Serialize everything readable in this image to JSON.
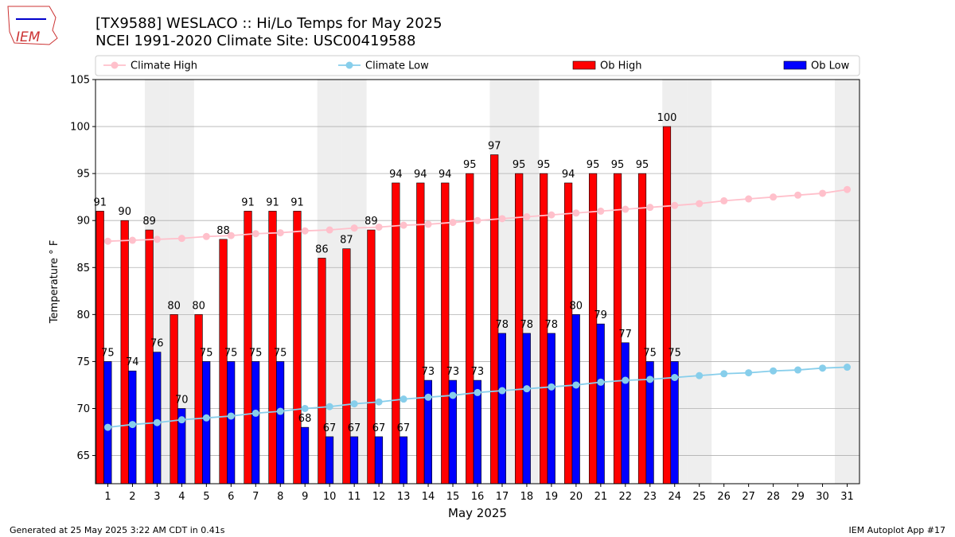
{
  "chart_data": {
    "type": "bar_line",
    "title": "[TX9588] WESLACO :: Hi/Lo Temps for May 2025",
    "subtitle": "NCEI 1991-2020 Climate Site: USC00419588",
    "x_label": "May 2025",
    "y_label": "Temperature ° F",
    "categories": [
      "1",
      "2",
      "3",
      "4",
      "5",
      "6",
      "7",
      "8",
      "9",
      "10",
      "11",
      "12",
      "13",
      "14",
      "15",
      "16",
      "17",
      "18",
      "19",
      "20",
      "21",
      "22",
      "23",
      "24",
      "25",
      "26",
      "27",
      "28",
      "29",
      "30",
      "31"
    ],
    "shaded_categories": [
      2,
      3,
      9,
      10,
      16,
      17,
      23,
      24,
      30
    ],
    "ylim": [
      62,
      105
    ],
    "yticks": [
      65,
      70,
      75,
      80,
      85,
      90,
      95,
      100,
      105
    ],
    "grid": true,
    "series": [
      {
        "name": "Climate High",
        "kind": "line",
        "color": "#ffc0cb",
        "values": [
          87.8,
          87.9,
          88.0,
          88.1,
          88.3,
          88.4,
          88.6,
          88.7,
          88.9,
          89.0,
          89.2,
          89.3,
          89.5,
          89.6,
          89.8,
          90.0,
          90.2,
          90.4,
          90.6,
          90.8,
          91.0,
          91.2,
          91.4,
          91.6,
          91.8,
          92.1,
          92.3,
          92.5,
          92.7,
          92.9,
          93.3
        ]
      },
      {
        "name": "Climate Low",
        "kind": "line",
        "color": "#87ceeb",
        "values": [
          68.0,
          68.3,
          68.5,
          68.8,
          69.0,
          69.2,
          69.5,
          69.7,
          70.0,
          70.2,
          70.5,
          70.7,
          71.0,
          71.2,
          71.4,
          71.7,
          71.9,
          72.1,
          72.3,
          72.5,
          72.8,
          73.0,
          73.1,
          73.3,
          73.5,
          73.7,
          73.8,
          74.0,
          74.1,
          74.3,
          74.4
        ]
      },
      {
        "name": "Ob High",
        "kind": "bar",
        "color": "#ff0000",
        "values": [
          91,
          90,
          89,
          80,
          80,
          88,
          91,
          91,
          91,
          86,
          87,
          89,
          94,
          94,
          94,
          95,
          97,
          95,
          95,
          94,
          95,
          95,
          95,
          100,
          null,
          null,
          null,
          null,
          null,
          null,
          null
        ]
      },
      {
        "name": "Ob Low",
        "kind": "bar",
        "color": "#0000ff",
        "values": [
          75,
          74,
          76,
          70,
          75,
          75,
          75,
          75,
          68,
          67,
          67,
          67,
          67,
          73,
          73,
          73,
          78,
          78,
          78,
          80,
          79,
          77,
          75,
          75,
          null,
          null,
          null,
          null,
          null,
          null,
          null
        ]
      }
    ]
  },
  "footer": {
    "left": "Generated at 25 May 2025 3:22 AM CDT in 0.41s",
    "right": "IEM Autoplot App #17"
  },
  "logo": "IEM"
}
